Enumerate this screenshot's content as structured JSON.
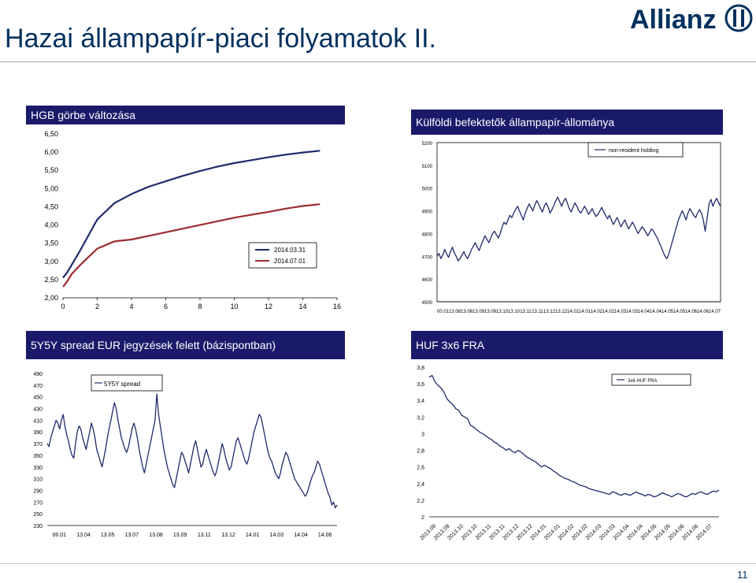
{
  "slide": {
    "title": "Hazai állampapír-piaci folyamatok II.",
    "logo_text": "Allianz",
    "page_number": "11",
    "colors": {
      "title": "#00305e",
      "header_bg": "#1a1a6b",
      "line_2014_03_31": "#1f2a6b",
      "line_2014_07_01": "#9b2d30"
    }
  },
  "charts": {
    "hgb": {
      "header": "HGB görbe változása",
      "legend": [
        "2014.03.31",
        "2014.07.01"
      ]
    },
    "kulfoldi": {
      "header": "Külföldi befektetők állampapír-állománya",
      "legend": [
        "non-resident holding"
      ]
    },
    "spread": {
      "header": "5Y5Y spread EUR jegyzések felett (bázispontban)",
      "legend": [
        "5Y5Y spread"
      ]
    },
    "fra": {
      "header": "HUF 3x6 FRA",
      "legend": [
        "3x6 HUF FRA"
      ]
    }
  },
  "chart_data": [
    {
      "type": "line",
      "title": "HGB görbe változása",
      "x": [
        0,
        0.25,
        0.5,
        1,
        2,
        3,
        4,
        5,
        6,
        7,
        8,
        9,
        10,
        11,
        12,
        13,
        14,
        15
      ],
      "xticks": [
        "0",
        "2",
        "4",
        "6",
        "8",
        "10",
        "12",
        "14",
        "16"
      ],
      "yticks": [
        "2,00",
        "2,50",
        "3,00",
        "3,50",
        "4,00",
        "4,50",
        "5,00",
        "5,50",
        "6,00",
        "6,50"
      ],
      "ylim": [
        2.0,
        6.5
      ],
      "xlim": [
        0,
        16
      ],
      "series": [
        {
          "name": "2014.03.31",
          "color": "#1f2a6b",
          "values": [
            2.55,
            2.7,
            2.9,
            3.3,
            4.15,
            4.6,
            4.85,
            5.05,
            5.2,
            5.35,
            5.48,
            5.6,
            5.7,
            5.78,
            5.86,
            5.93,
            5.99,
            6.04
          ]
        },
        {
          "name": "2014.07.01",
          "color": "#9b2d30",
          "values": [
            2.3,
            2.45,
            2.65,
            2.9,
            3.35,
            3.55,
            3.6,
            3.7,
            3.8,
            3.9,
            4.0,
            4.1,
            4.2,
            4.28,
            4.36,
            4.45,
            4.52,
            4.57
          ]
        }
      ]
    },
    {
      "type": "line",
      "title": "Külföldi befektetők állampapír-állománya",
      "xticks": [
        "00.01",
        "13.08",
        "13.08",
        "13.09",
        "13.09",
        "13.10",
        "13.10",
        "13.11",
        "13.11",
        "13.12",
        "13.12",
        "14.01",
        "14.01",
        "14.02",
        "14.02",
        "14.03",
        "14.03",
        "14.04",
        "14.04",
        "14.05",
        "14.05",
        "14.06",
        "14.06",
        "14.07"
      ],
      "yticks": [
        "4500",
        "4600",
        "4700",
        "4800",
        "4900",
        "5000",
        "5100",
        "5200"
      ],
      "ylim": [
        4500,
        5200
      ],
      "series": [
        {
          "name": "non-resident holding",
          "color": "#1f2a6b",
          "values": [
            4700,
            4712,
            4690,
            4705,
            4730,
            4710,
            4695,
            4720,
            4740,
            4715,
            4700,
            4680,
            4690,
            4705,
            4720,
            4700,
            4690,
            4710,
            4730,
            4745,
            4760,
            4740,
            4725,
            4750,
            4770,
            4790,
            4775,
            4760,
            4780,
            4800,
            4810,
            4795,
            4780,
            4800,
            4830,
            4850,
            4840,
            4860,
            4880,
            4870,
            4890,
            4905,
            4920,
            4900,
            4880,
            4860,
            4890,
            4910,
            4930,
            4915,
            4900,
            4925,
            4945,
            4930,
            4910,
            4895,
            4920,
            4935,
            4915,
            4890,
            4905,
            4925,
            4945,
            4960,
            4940,
            4920,
            4940,
            4955,
            4935,
            4910,
            4895,
            4915,
            4935,
            4920,
            4900,
            4890,
            4905,
            4920,
            4905,
            4885,
            4895,
            4910,
            4890,
            4875,
            4885,
            4900,
            4915,
            4895,
            4880,
            4865,
            4880,
            4860,
            4840,
            4855,
            4870,
            4850,
            4830,
            4845,
            4860,
            4840,
            4820,
            4835,
            4850,
            4835,
            4815,
            4800,
            4815,
            4830,
            4820,
            4805,
            4790,
            4805,
            4820,
            4810,
            4795,
            4780,
            4760,
            4740,
            4720,
            4700,
            4690,
            4710,
            4740,
            4770,
            4800,
            4830,
            4860,
            4880,
            4900,
            4880,
            4860,
            4890,
            4910,
            4895,
            4880,
            4870,
            4890,
            4905,
            4890,
            4860,
            4810,
            4870,
            4930,
            4950,
            4920,
            4940,
            4955,
            4935,
            4920
          ]
        }
      ]
    },
    {
      "type": "line",
      "title": "5Y5Y spread EUR jegyzések felett (bázispontban)",
      "xticks": [
        "00.01",
        "13.04",
        "13.05",
        "13.07",
        "13.08",
        "13.09",
        "13.11",
        "13.12",
        "14.01",
        "14.03",
        "14.04",
        "14.06"
      ],
      "yticks": [
        "230",
        "250",
        "270",
        "290",
        "310",
        "330",
        "350",
        "370",
        "390",
        "410",
        "430",
        "450",
        "470",
        "490"
      ],
      "ylim": [
        230,
        490
      ],
      "series": [
        {
          "name": "5Y5Y spread",
          "color": "#1f2a6b",
          "values": [
            370,
            365,
            380,
            390,
            400,
            410,
            405,
            395,
            410,
            420,
            400,
            385,
            375,
            360,
            350,
            345,
            370,
            390,
            400,
            395,
            380,
            370,
            360,
            375,
            390,
            405,
            395,
            380,
            360,
            350,
            340,
            330,
            345,
            360,
            380,
            395,
            410,
            425,
            440,
            430,
            410,
            395,
            380,
            370,
            360,
            355,
            365,
            380,
            395,
            405,
            395,
            380,
            360,
            345,
            330,
            320,
            335,
            350,
            365,
            380,
            395,
            410,
            455,
            420,
            400,
            380,
            360,
            345,
            330,
            320,
            310,
            300,
            295,
            310,
            325,
            340,
            355,
            350,
            340,
            330,
            320,
            335,
            350,
            365,
            375,
            360,
            345,
            330,
            335,
            350,
            360,
            350,
            340,
            330,
            320,
            315,
            325,
            340,
            355,
            370,
            360,
            345,
            335,
            325,
            330,
            345,
            360,
            375,
            380,
            370,
            360,
            350,
            340,
            335,
            345,
            360,
            375,
            390,
            400,
            410,
            420,
            415,
            400,
            385,
            370,
            355,
            345,
            340,
            330,
            320,
            315,
            310,
            320,
            335,
            345,
            355,
            350,
            340,
            330,
            320,
            310,
            305,
            300,
            295,
            290,
            285,
            280,
            285,
            295,
            305,
            315,
            320,
            330,
            340,
            335,
            325,
            315,
            305,
            295,
            285,
            278,
            265,
            270,
            260,
            265
          ]
        }
      ]
    },
    {
      "type": "line",
      "title": "HUF 3x6 FRA",
      "xticks": [
        "2013.09",
        "2013.09",
        "2013.10",
        "2013.10",
        "2013.11",
        "2013.11",
        "2013.12",
        "2013.12",
        "2014.01",
        "2014.01",
        "2014.02",
        "2014.02",
        "2014.03",
        "2014.03",
        "2014.04",
        "2014.04",
        "2014.05",
        "2014.05",
        "2014.06",
        "2014.06",
        "2014.07"
      ],
      "yticks": [
        "2",
        "2,2",
        "2,4",
        "2,6",
        "2,8",
        "3",
        "3,2",
        "3,4",
        "3,6",
        "3,8"
      ],
      "ylim": [
        2.0,
        3.8
      ],
      "series": [
        {
          "name": "3x6 HUF FRA",
          "color": "#1f2a6b",
          "values": [
            3.68,
            3.7,
            3.62,
            3.58,
            3.55,
            3.5,
            3.42,
            3.38,
            3.35,
            3.3,
            3.28,
            3.22,
            3.2,
            3.18,
            3.1,
            3.08,
            3.05,
            3.02,
            3.0,
            2.98,
            2.95,
            2.93,
            2.9,
            2.88,
            2.85,
            2.83,
            2.8,
            2.82,
            2.79,
            2.77,
            2.8,
            2.78,
            2.75,
            2.72,
            2.7,
            2.68,
            2.66,
            2.63,
            2.6,
            2.62,
            2.6,
            2.58,
            2.55,
            2.53,
            2.5,
            2.48,
            2.46,
            2.45,
            2.43,
            2.42,
            2.4,
            2.38,
            2.37,
            2.36,
            2.34,
            2.33,
            2.32,
            2.31,
            2.3,
            2.29,
            2.28,
            2.27,
            2.3,
            2.29,
            2.27,
            2.26,
            2.28,
            2.27,
            2.26,
            2.28,
            2.3,
            2.28,
            2.27,
            2.25,
            2.27,
            2.26,
            2.24,
            2.25,
            2.27,
            2.29,
            2.27,
            2.26,
            2.24,
            2.26,
            2.28,
            2.27,
            2.25,
            2.24,
            2.26,
            2.28,
            2.27,
            2.29,
            2.3,
            2.28,
            2.27,
            2.29,
            2.31,
            2.3,
            2.32
          ]
        }
      ]
    }
  ]
}
